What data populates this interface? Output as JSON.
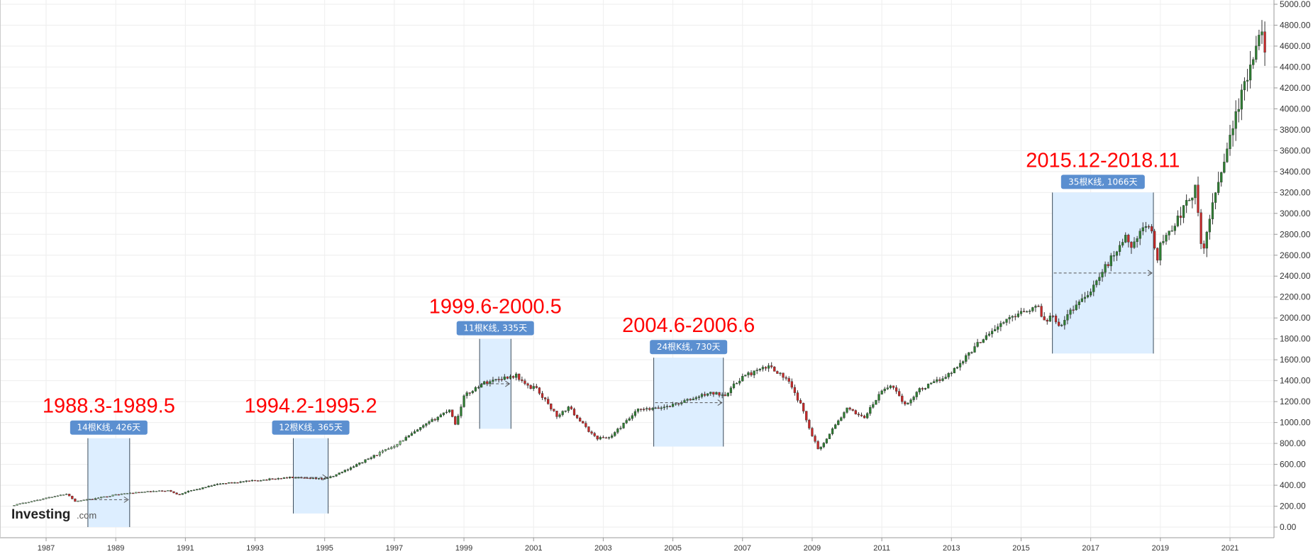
{
  "watermark": {
    "brand": "Investing",
    "domain": ".com"
  },
  "colors": {
    "up": "#2e7d32",
    "down": "#c62828",
    "up_light": "#7cbf7c",
    "wick": "#333333",
    "grid": "#eeeeee",
    "box_fill": "#ddeeff",
    "box_border": "#3a4a5a",
    "badge": "#5b8fd0",
    "annotation": "#ff0000"
  },
  "chart_data": {
    "type": "candlestick",
    "title": "",
    "xlabel": "",
    "ylabel": "",
    "ylim": [
      0,
      5000
    ],
    "xlim": [
      1985.8,
      2022.2
    ],
    "y_ticks": [
      "0.00",
      "200.00",
      "400.00",
      "600.00",
      "800.00",
      "1000.00",
      "1200.00",
      "1400.00",
      "1600.00",
      "1800.00",
      "2000.00",
      "2200.00",
      "2400.00",
      "2600.00",
      "2800.00",
      "3000.00",
      "3200.00",
      "3400.00",
      "3600.00",
      "3800.00",
      "4000.00",
      "4200.00",
      "4400.00",
      "4600.00",
      "4800.00",
      "5000.00"
    ],
    "x_ticks": [
      "1987",
      "1989",
      "1991",
      "1993",
      "1995",
      "1997",
      "1999",
      "2001",
      "2003",
      "2005",
      "2007",
      "2009",
      "2011",
      "2013",
      "2015",
      "2017",
      "2019",
      "2021"
    ],
    "grid": true,
    "price_path": [
      [
        1986.0,
        205
      ],
      [
        1987.6,
        320
      ],
      [
        1987.83,
        245
      ],
      [
        1988.0,
        255
      ],
      [
        1988.2,
        262
      ],
      [
        1989.0,
        310
      ],
      [
        1989.4,
        325
      ],
      [
        1990.0,
        340
      ],
      [
        1990.5,
        350
      ],
      [
        1990.8,
        310
      ],
      [
        1991.0,
        335
      ],
      [
        1992.0,
        415
      ],
      [
        1993.0,
        445
      ],
      [
        1994.0,
        475
      ],
      [
        1994.2,
        470
      ],
      [
        1994.9,
        460
      ],
      [
        1995.2,
        480
      ],
      [
        1996.0,
        610
      ],
      [
        1997.0,
        780
      ],
      [
        1998.0,
        1000
      ],
      [
        1998.6,
        1130
      ],
      [
        1998.75,
        980
      ],
      [
        1999.0,
        1250
      ],
      [
        1999.5,
        1370
      ],
      [
        2000.0,
        1420
      ],
      [
        2000.5,
        1450
      ],
      [
        2000.9,
        1320
      ],
      [
        2001.0,
        1360
      ],
      [
        2001.7,
        1050
      ],
      [
        2002.0,
        1150
      ],
      [
        2002.5,
        950
      ],
      [
        2002.8,
        850
      ],
      [
        2003.2,
        860
      ],
      [
        2004.0,
        1120
      ],
      [
        2004.5,
        1130
      ],
      [
        2005.0,
        1170
      ],
      [
        2005.6,
        1230
      ],
      [
        2006.0,
        1280
      ],
      [
        2006.5,
        1270
      ],
      [
        2007.0,
        1440
      ],
      [
        2007.8,
        1540
      ],
      [
        2008.3,
        1400
      ],
      [
        2008.7,
        1150
      ],
      [
        2009.0,
        880
      ],
      [
        2009.2,
        730
      ],
      [
        2009.5,
        900
      ],
      [
        2010.0,
        1130
      ],
      [
        2010.5,
        1050
      ],
      [
        2011.0,
        1300
      ],
      [
        2011.3,
        1360
      ],
      [
        2011.7,
        1150
      ],
      [
        2012.0,
        1300
      ],
      [
        2012.5,
        1380
      ],
      [
        2013.0,
        1480
      ],
      [
        2014.0,
        1840
      ],
      [
        2015.0,
        2070
      ],
      [
        2015.5,
        2100
      ],
      [
        2015.7,
        1950
      ],
      [
        2015.9,
        2050
      ],
      [
        2016.1,
        1920
      ],
      [
        2016.5,
        2100
      ],
      [
        2017.0,
        2270
      ],
      [
        2018.0,
        2780
      ],
      [
        2018.1,
        2680
      ],
      [
        2018.7,
        2910
      ],
      [
        2018.95,
        2500
      ],
      [
        2019.0,
        2700
      ],
      [
        2019.5,
        2950
      ],
      [
        2020.0,
        3230
      ],
      [
        2020.2,
        2580
      ],
      [
        2020.5,
        3100
      ],
      [
        2021.0,
        3750
      ],
      [
        2021.5,
        4300
      ],
      [
        2021.9,
        4700
      ],
      [
        2022.0,
        4620
      ]
    ],
    "annotations": [
      {
        "label": "1988.3-1989.5",
        "badge": "14根K线, 426天",
        "start": 1988.2,
        "end": 1989.4,
        "low": 0,
        "high": 850,
        "baseline": 262
      },
      {
        "label": "1994.2-1995.2",
        "badge": "12根K线, 365天",
        "start": 1994.1,
        "end": 1995.1,
        "low": 130,
        "high": 850,
        "baseline": 475
      },
      {
        "label": "1999.6-2000.5",
        "badge": "11根K线, 335天",
        "start": 1999.45,
        "end": 2000.35,
        "low": 940,
        "high": 1800,
        "baseline": 1370
      },
      {
        "label": "2004.6-2006.6",
        "badge": "24根K线, 730天",
        "start": 2004.45,
        "end": 2006.45,
        "low": 770,
        "high": 1620,
        "baseline": 1190
      },
      {
        "label": "2015.12-2018.11",
        "badge": "35根K线, 1066天",
        "start": 2015.9,
        "end": 2018.8,
        "low": 1660,
        "high": 3200,
        "baseline": 2430
      }
    ]
  }
}
